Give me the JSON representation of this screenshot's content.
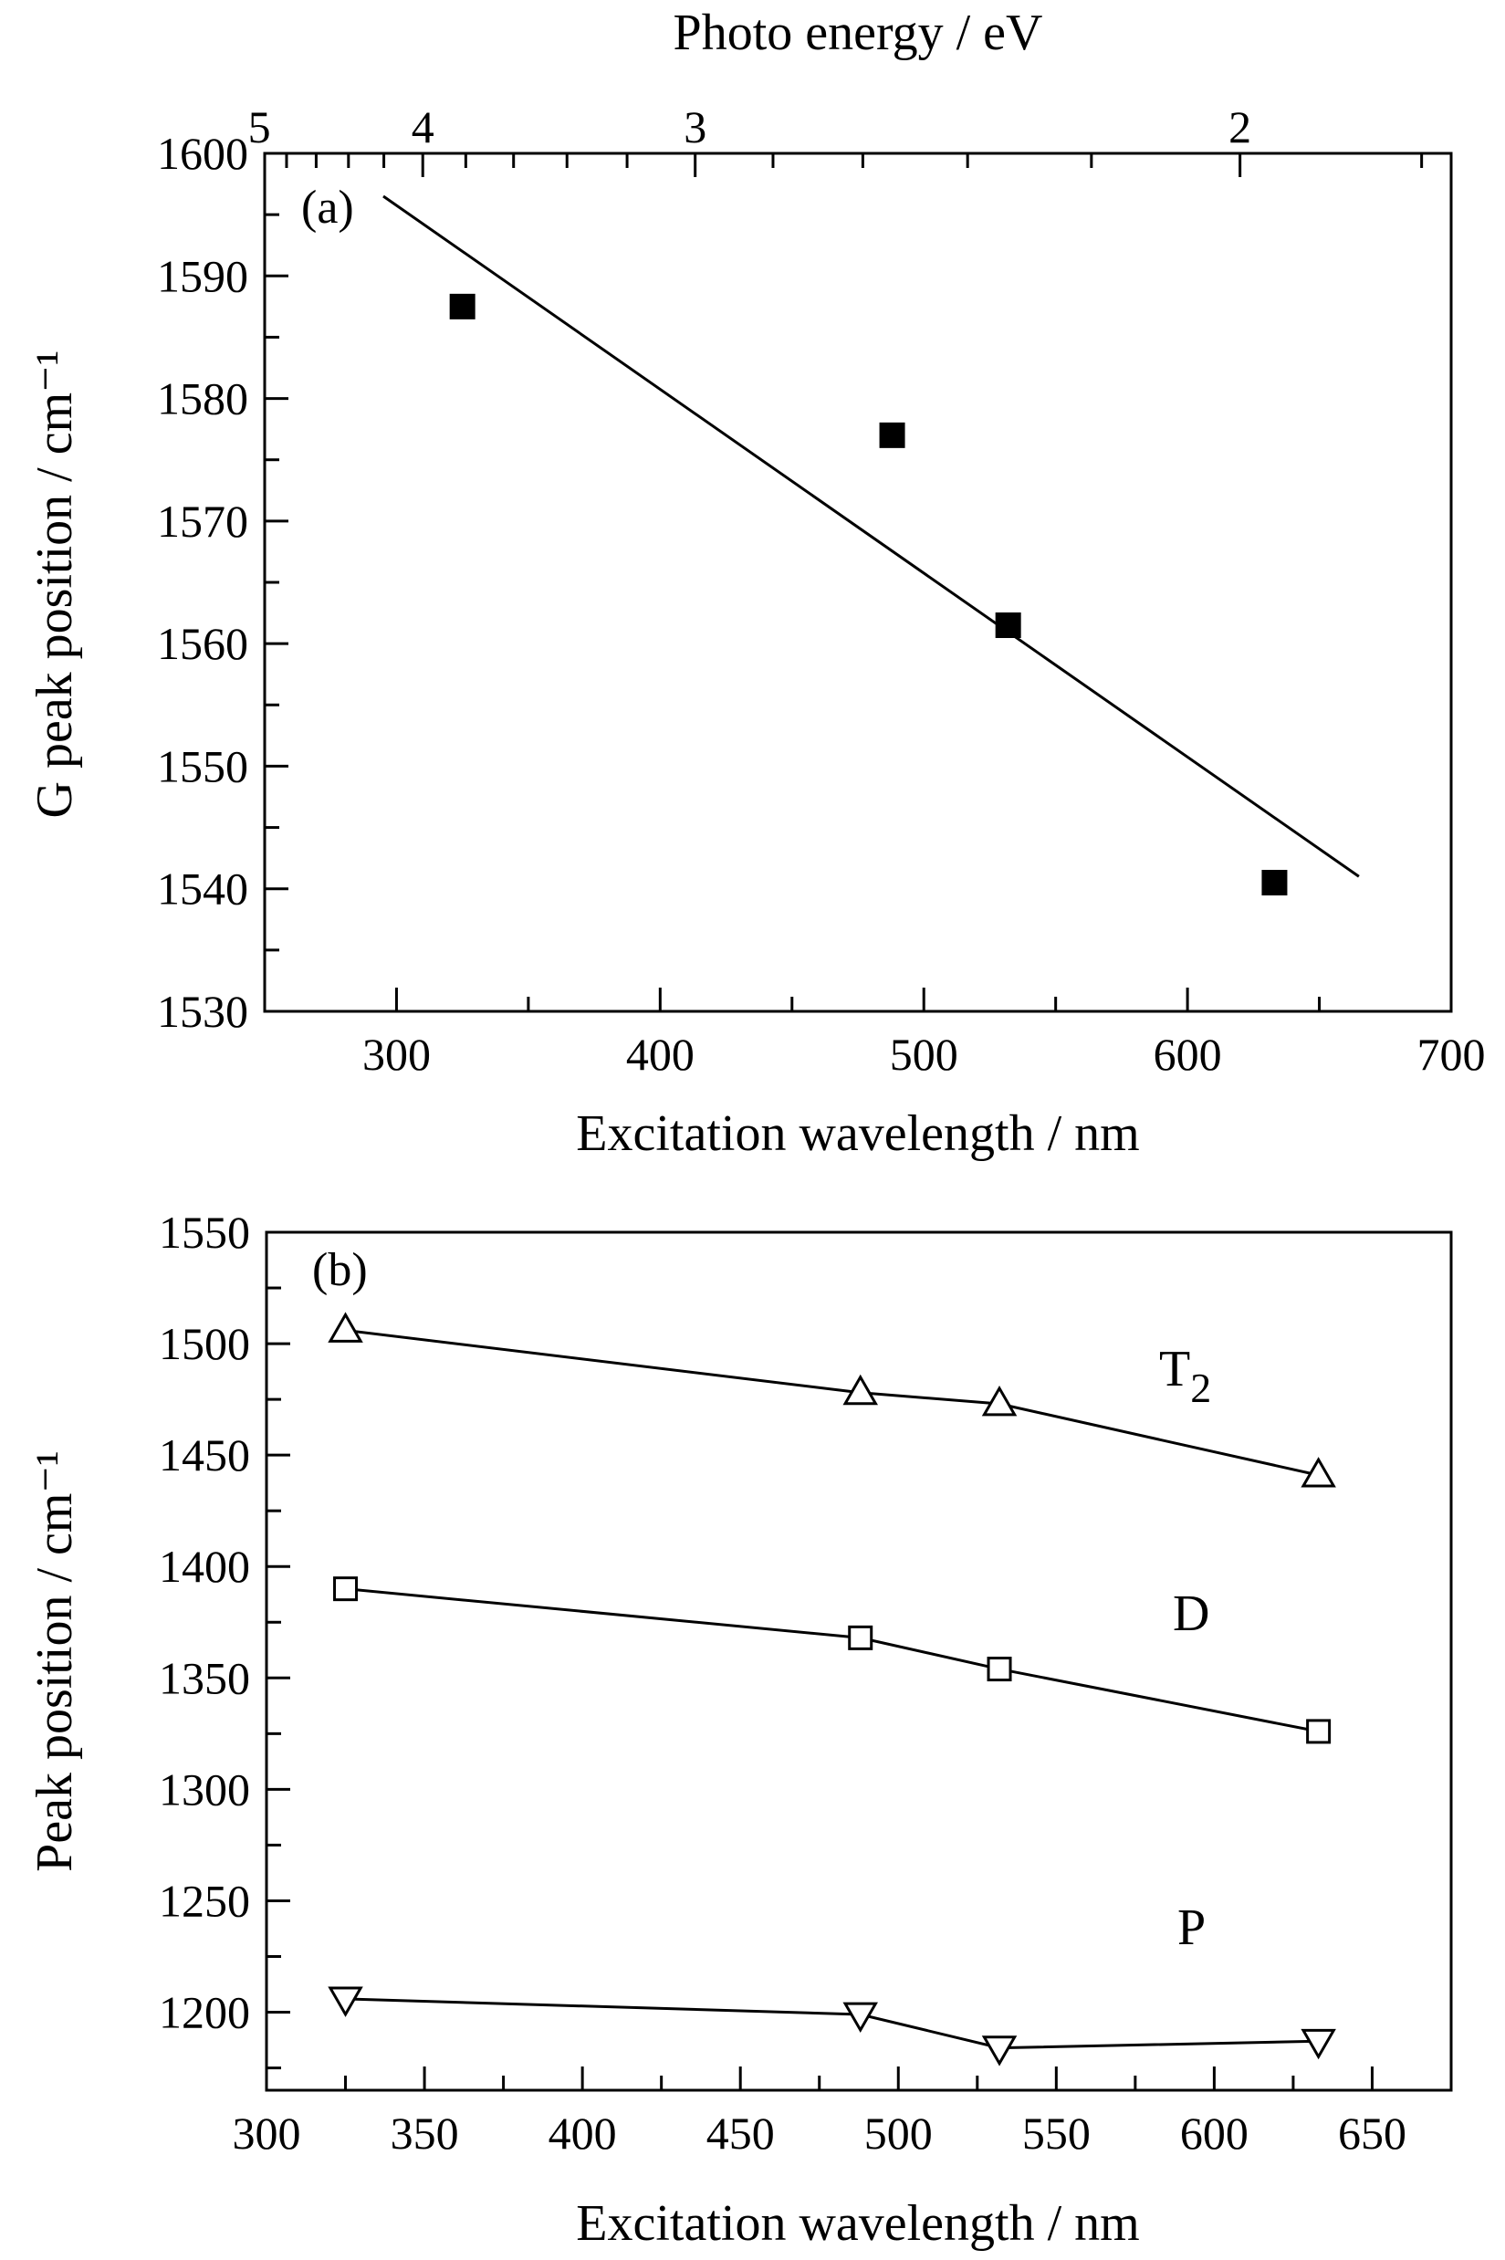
{
  "chart_data": [
    {
      "type": "scatter",
      "panel_label": "(a)",
      "title": "",
      "xlabel": "Excitation wavelength / nm",
      "ylabel": "G peak position / cm⁻¹",
      "x2label": "Photo energy / eV",
      "xlim": [
        250,
        700
      ],
      "ylim": [
        1530,
        1600
      ],
      "xticks": [
        "300",
        "400",
        "500",
        "600",
        "700"
      ],
      "yticks": [
        "1530",
        "1540",
        "1550",
        "1560",
        "1570",
        "1580",
        "1590",
        "1600"
      ],
      "x2ticks": [
        "5",
        "4",
        "3",
        "2"
      ],
      "series": [
        {
          "marker": "filled-square",
          "x": [
            325,
            488,
            532,
            633
          ],
          "y": [
            1587.5,
            1577,
            1561.5,
            1540.5
          ]
        }
      ],
      "fit_line": {
        "x": [
          295,
          665
        ],
        "y": [
          1596.5,
          1541
        ]
      },
      "grid": false,
      "legend": "none"
    },
    {
      "type": "line",
      "panel_label": "(b)",
      "title": "",
      "xlabel": "Excitation wavelength / nm",
      "ylabel": "Peak position / cm⁻¹",
      "xlim": [
        300,
        675
      ],
      "ylim": [
        1165,
        1550
      ],
      "xticks": [
        "300",
        "350",
        "400",
        "450",
        "500",
        "550",
        "600",
        "650"
      ],
      "yticks": [
        "1200",
        "1250",
        "1300",
        "1350",
        "1400",
        "1450",
        "1500",
        "1550"
      ],
      "x": [
        325,
        488,
        532,
        633
      ],
      "series": [
        {
          "name_main": "T",
          "name_sub": "2",
          "marker": "open-triangle-up",
          "values": [
            1506,
            1478,
            1473,
            1441
          ]
        },
        {
          "name_main": "D",
          "name_sub": "",
          "marker": "open-square",
          "values": [
            1390,
            1368,
            1354,
            1326
          ]
        },
        {
          "name_main": "P",
          "name_sub": "",
          "marker": "open-triangle-down",
          "values": [
            1206,
            1199,
            1184,
            1187
          ]
        }
      ],
      "grid": false,
      "legend": "labels beside series"
    }
  ]
}
